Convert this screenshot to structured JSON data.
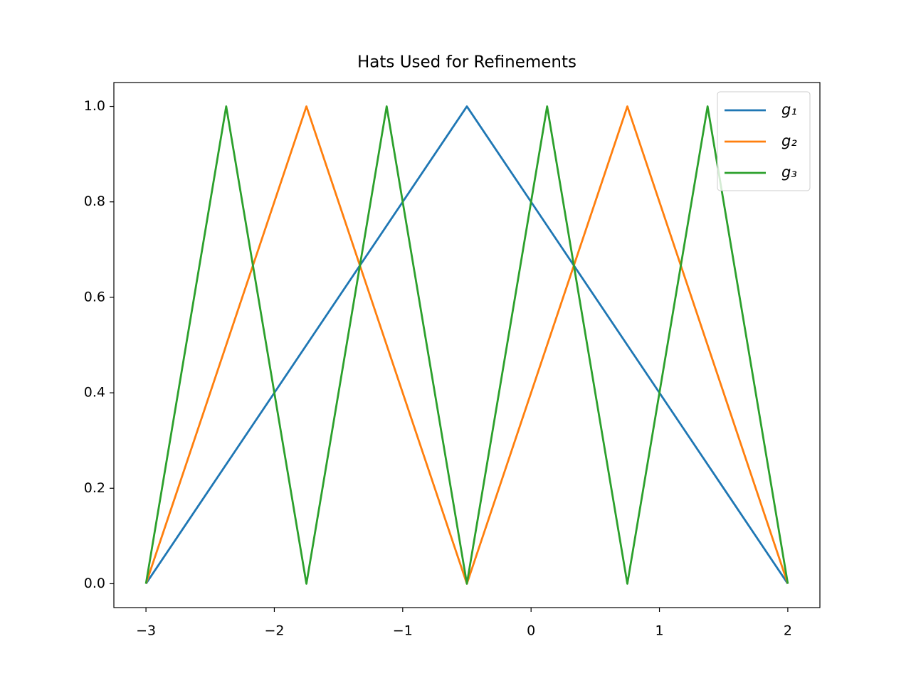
{
  "chart_data": {
    "type": "line",
    "title": "Hats Used for Refinements",
    "series": [
      {
        "name": "g₁",
        "color": "#1f77b4",
        "x": [
          -3,
          -0.5,
          2
        ],
        "values": [
          0,
          1,
          0
        ]
      },
      {
        "name": "g₂",
        "color": "#ff7f0e",
        "x": [
          -3,
          -1.75,
          -0.5,
          0.75,
          2
        ],
        "values": [
          0,
          1,
          0,
          1,
          0
        ]
      },
      {
        "name": "g₃",
        "color": "#2ca02c",
        "x": [
          -3,
          -2.375,
          -1.75,
          -1.125,
          -0.5,
          0.125,
          0.75,
          1.375,
          2
        ],
        "values": [
          0,
          1,
          0,
          1,
          0,
          1,
          0,
          1,
          0
        ]
      }
    ],
    "xlim": [
      -3.25,
      2.25
    ],
    "ylim": [
      -0.05,
      1.05
    ],
    "xticks": [
      {
        "value": -3,
        "label": "−3"
      },
      {
        "value": -2,
        "label": "−2"
      },
      {
        "value": -1,
        "label": "−1"
      },
      0,
      1,
      2
    ],
    "yticks": [
      {
        "value": 0,
        "label": "0.0"
      },
      0.2,
      0.4,
      0.6,
      0.8,
      {
        "value": 1,
        "label": "1.0"
      }
    ],
    "grid": false,
    "legend": "upper right"
  }
}
